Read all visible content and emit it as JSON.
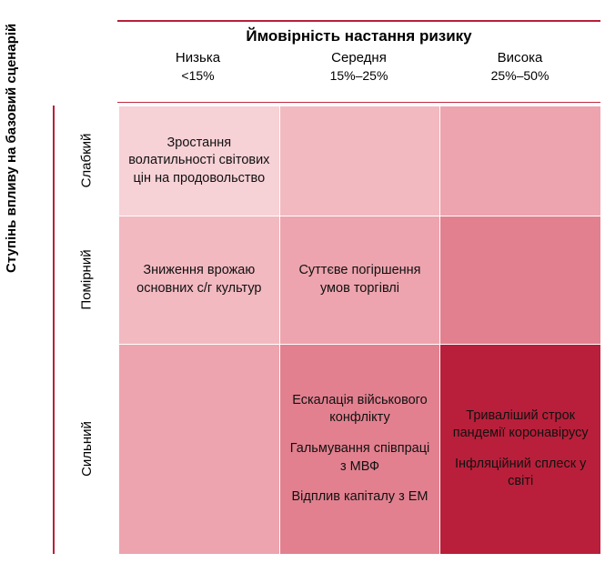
{
  "matrix": {
    "type": "heatmap",
    "x_axis_title": "Ймовірність настання ризику",
    "y_axis_title": "Ступінь впливу на базовий сценарій",
    "title_fontsize": 17,
    "label_fontsize": 15,
    "cell_fontsize": 14.5,
    "background_color": "#ffffff",
    "rule_color": "#b91f3a",
    "text_color": "#000000",
    "cell_text_color": "#111111",
    "cell_border_color": "#ffffff",
    "columns": [
      {
        "label": "Низька",
        "range": "<15%"
      },
      {
        "label": "Середня",
        "range": "15%–25%"
      },
      {
        "label": "Висока",
        "range": "25%–50%"
      }
    ],
    "rows": [
      {
        "label": "Слабкий"
      },
      {
        "label": "Помірний"
      },
      {
        "label": "Сильний"
      }
    ],
    "cell_colors": [
      [
        "#f6d1d6",
        "#f2b9c1",
        "#eda4ae"
      ],
      [
        "#f2b9c1",
        "#eda4ae",
        "#e2808f"
      ],
      [
        "#eda4ae",
        "#e2808f",
        "#b91f3a"
      ]
    ],
    "cells": [
      [
        [
          "Зростання волатильності світових цін на продовольство"
        ],
        [],
        []
      ],
      [
        [
          "Зниження врожаю основних с/г культур"
        ],
        [
          "Суттєве погіршення умов торгівлі"
        ],
        []
      ],
      [
        [],
        [
          "Ескалація військового конфлікту",
          "Гальмування співпраці з МВФ",
          "Відплив капіталу з EM"
        ],
        [
          "Триваліший строк пандемії коронавірусу",
          "Інфляційний сплеск у світі"
        ]
      ]
    ]
  }
}
